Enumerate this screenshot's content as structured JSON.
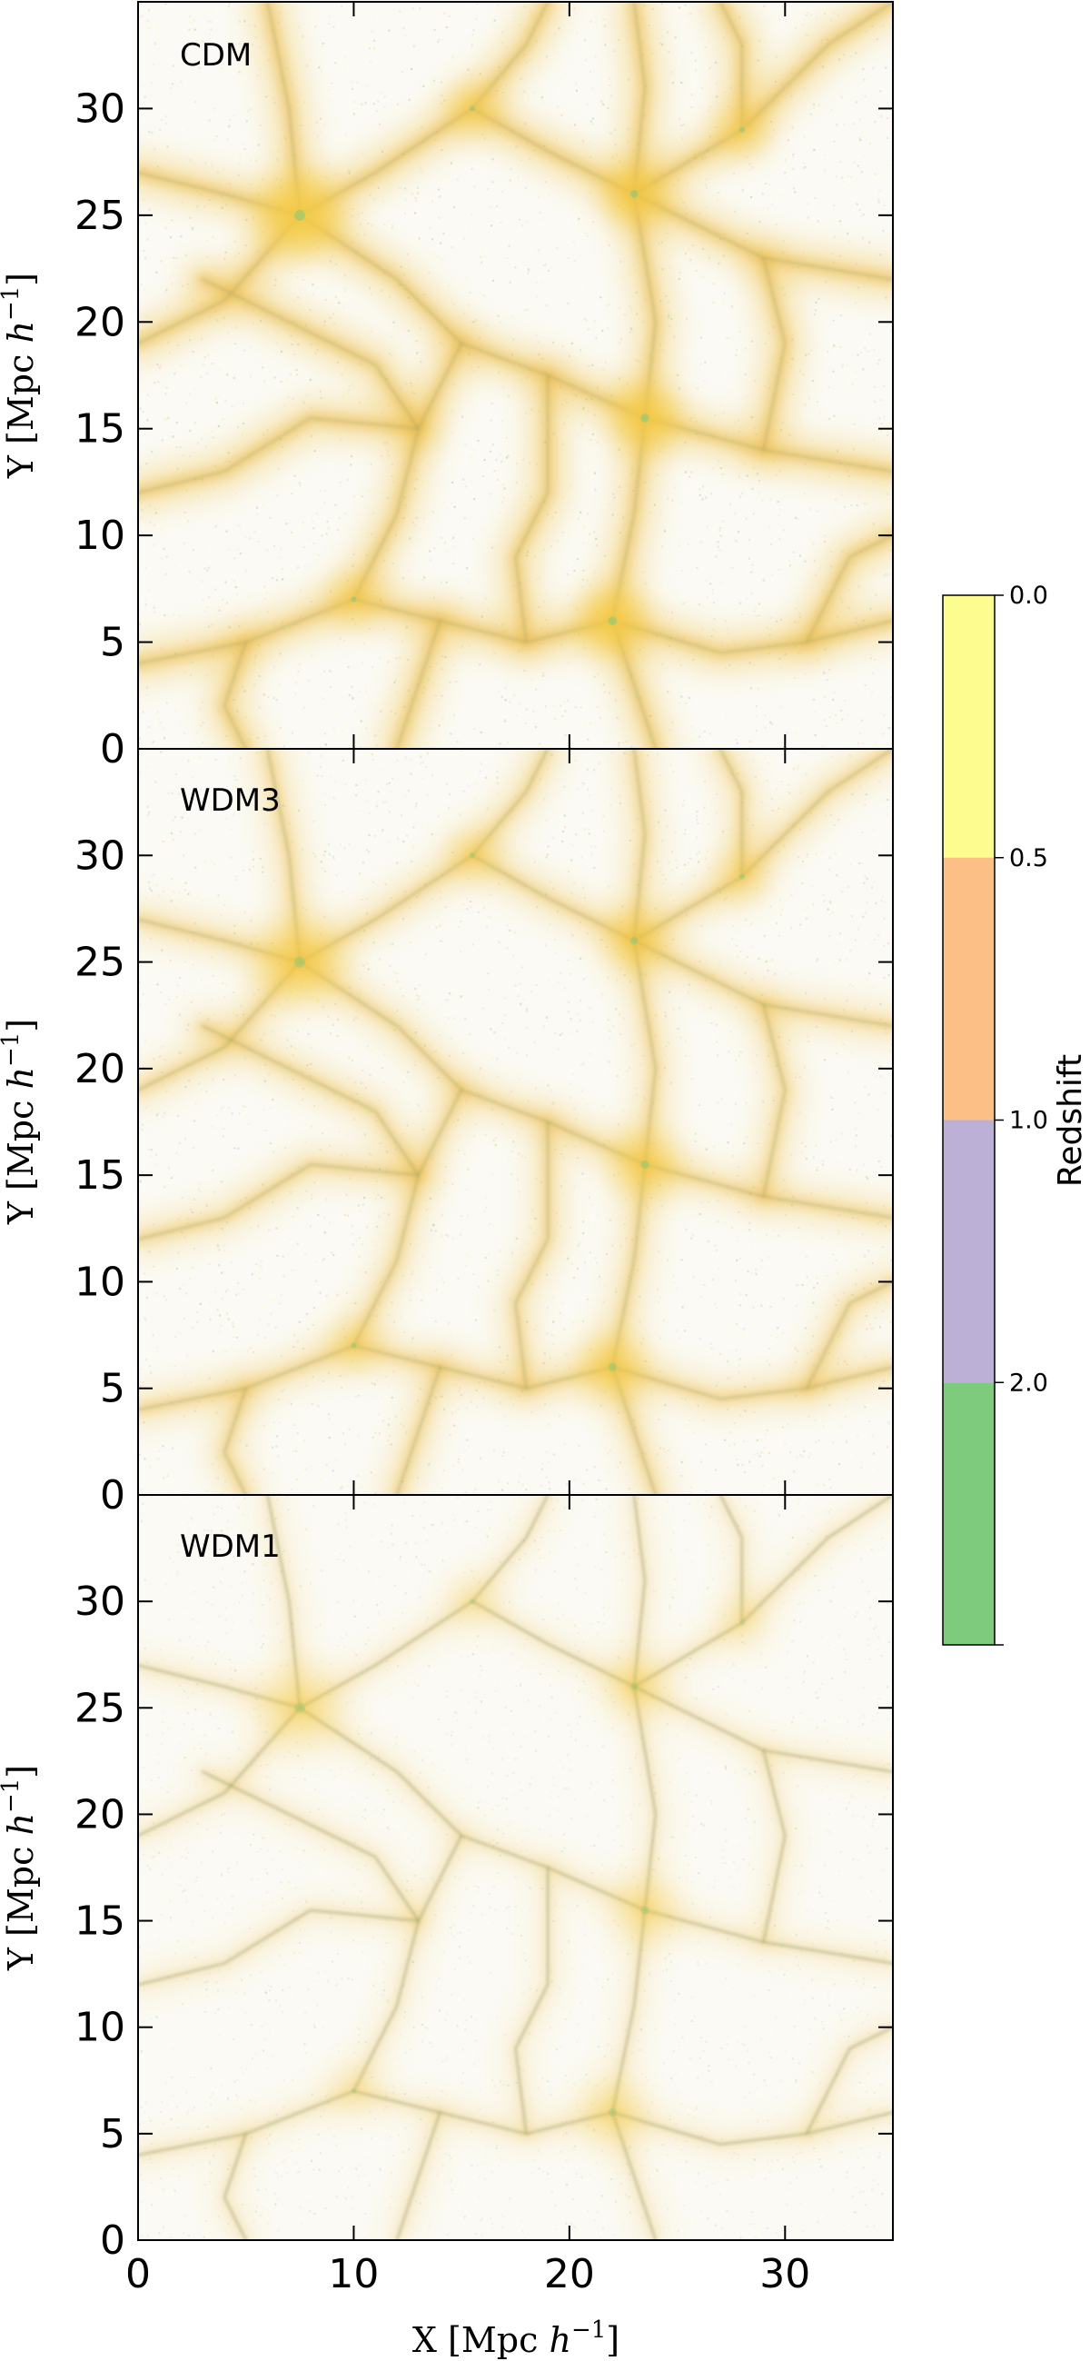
{
  "chart_data": {
    "type": "scatter",
    "panels": [
      {
        "label": "CDM",
        "variant": "cdm"
      },
      {
        "label": "WDM3",
        "variant": "wdm3"
      },
      {
        "label": "WDM1",
        "variant": "wdm1"
      }
    ],
    "xlabel_prefix": "X [Mpc ",
    "ylabel_prefix": "Y [Mpc ",
    "unit_symbol": "h",
    "unit_exponent": "−1",
    "unit_suffix": "]",
    "xlim": [
      0,
      35
    ],
    "ylim": [
      0,
      35
    ],
    "x_ticks": [
      "0",
      "10",
      "20",
      "30"
    ],
    "y_ticks": [
      "0",
      "5",
      "10",
      "15",
      "20",
      "25",
      "30"
    ],
    "x_tick_values": [
      0,
      10,
      20,
      30
    ],
    "y_tick_values": [
      0,
      5,
      10,
      15,
      20,
      25,
      30
    ],
    "colorbar": {
      "label": "Redshift",
      "tick_labels": [
        "0.0",
        "0.5",
        "1.0",
        "2.0"
      ],
      "bins": [
        {
          "from": "0.0",
          "to": "0.5",
          "color": "#fdfc8f"
        },
        {
          "from": "0.5",
          "to": "1.0",
          "color": "#fcbf85"
        },
        {
          "from": "1.0",
          "to": "2.0",
          "color": "#bdb0d6"
        },
        {
          "from": "2.0",
          "to": "",
          "color": "#7ecb7e"
        }
      ]
    },
    "filaments": [
      {
        "path": [
          [
            0,
            19
          ],
          [
            4,
            21
          ],
          [
            7.5,
            25
          ]
        ]
      },
      {
        "path": [
          [
            7.5,
            25
          ],
          [
            12,
            22
          ],
          [
            15,
            19
          ],
          [
            19,
            17.5
          ],
          [
            23.5,
            15.5
          ]
        ]
      },
      {
        "path": [
          [
            7.5,
            25
          ],
          [
            7,
            30
          ],
          [
            6,
            35
          ]
        ]
      },
      {
        "path": [
          [
            7.5,
            25
          ],
          [
            11,
            27
          ],
          [
            15.5,
            30
          ],
          [
            18,
            33
          ],
          [
            19,
            35
          ]
        ]
      },
      {
        "path": [
          [
            23.5,
            15.5
          ],
          [
            24,
            20
          ],
          [
            23,
            26
          ]
        ]
      },
      {
        "path": [
          [
            23,
            26
          ],
          [
            23.5,
            31
          ],
          [
            23,
            35
          ]
        ]
      },
      {
        "path": [
          [
            23,
            26
          ],
          [
            28,
            29
          ],
          [
            32,
            33
          ],
          [
            35,
            35
          ]
        ]
      },
      {
        "path": [
          [
            23,
            26
          ],
          [
            29,
            23
          ],
          [
            35,
            22
          ]
        ]
      },
      {
        "path": [
          [
            23.5,
            15.5
          ],
          [
            29,
            14
          ],
          [
            35,
            13
          ]
        ]
      },
      {
        "path": [
          [
            23.5,
            15.5
          ],
          [
            23,
            11
          ],
          [
            22,
            6
          ]
        ]
      },
      {
        "path": [
          [
            0,
            4
          ],
          [
            5,
            5
          ],
          [
            10,
            7
          ],
          [
            14,
            6
          ],
          [
            18,
            5
          ],
          [
            22,
            6
          ]
        ]
      },
      {
        "path": [
          [
            22,
            6
          ],
          [
            27,
            4.5
          ],
          [
            31,
            5
          ],
          [
            35,
            6
          ]
        ]
      },
      {
        "path": [
          [
            22,
            6
          ],
          [
            23,
            3
          ],
          [
            24,
            0
          ]
        ]
      },
      {
        "path": [
          [
            10,
            7
          ],
          [
            12,
            11
          ],
          [
            13,
            15
          ],
          [
            15,
            19
          ]
        ]
      },
      {
        "path": [
          [
            0,
            12
          ],
          [
            4,
            13
          ],
          [
            8,
            15.5
          ],
          [
            13,
            15
          ]
        ]
      },
      {
        "path": [
          [
            0,
            27
          ],
          [
            4,
            26
          ],
          [
            7.5,
            25
          ]
        ]
      },
      {
        "path": [
          [
            13,
            15
          ],
          [
            11,
            18
          ],
          [
            7,
            20
          ],
          [
            3,
            22
          ]
        ]
      },
      {
        "path": [
          [
            15.5,
            30
          ],
          [
            19,
            28
          ],
          [
            23,
            26
          ]
        ]
      },
      {
        "path": [
          [
            28,
            29
          ],
          [
            28,
            33
          ],
          [
            27,
            35
          ]
        ]
      },
      {
        "path": [
          [
            29,
            23
          ],
          [
            30,
            19
          ],
          [
            29,
            14
          ]
        ]
      },
      {
        "path": [
          [
            5,
            5
          ],
          [
            4,
            2
          ],
          [
            5,
            0
          ]
        ]
      },
      {
        "path": [
          [
            14,
            6
          ],
          [
            13,
            3
          ],
          [
            12,
            0
          ]
        ]
      },
      {
        "path": [
          [
            31,
            5
          ],
          [
            33,
            9
          ],
          [
            35,
            10
          ]
        ]
      },
      {
        "path": [
          [
            18,
            5
          ],
          [
            17.5,
            9
          ],
          [
            19,
            12
          ],
          [
            19,
            17.5
          ]
        ]
      }
    ],
    "nodes": [
      {
        "x": 7.5,
        "y": 25,
        "w": 1.0
      },
      {
        "x": 23.5,
        "y": 15.5,
        "w": 0.8
      },
      {
        "x": 22,
        "y": 6,
        "w": 0.8
      },
      {
        "x": 23,
        "y": 26,
        "w": 0.7
      },
      {
        "x": 15.5,
        "y": 30,
        "w": 0.5
      },
      {
        "x": 28,
        "y": 29,
        "w": 0.5
      },
      {
        "x": 10,
        "y": 7,
        "w": 0.5
      }
    ]
  }
}
